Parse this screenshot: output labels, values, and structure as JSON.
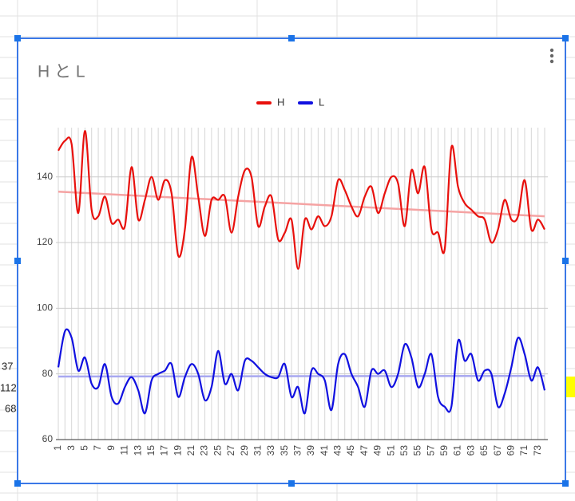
{
  "chart_data": {
    "type": "line",
    "title": "H と L",
    "categories": [
      1,
      null,
      3,
      null,
      5,
      null,
      7,
      null,
      9,
      null,
      11,
      null,
      13,
      null,
      15,
      null,
      17,
      null,
      19,
      null,
      21,
      null,
      23,
      null,
      25,
      null,
      27,
      null,
      29,
      null,
      31,
      null,
      33,
      null,
      35,
      null,
      37,
      null,
      39,
      null,
      41,
      null,
      43,
      null,
      45,
      null,
      47,
      null,
      49,
      null,
      51,
      null,
      53,
      null,
      55,
      null,
      57,
      null,
      59,
      null,
      61,
      null,
      63,
      null,
      65,
      null,
      67,
      null,
      69,
      null,
      71,
      null,
      73,
      null
    ],
    "series": [
      {
        "name": "H",
        "color": "#e8100c",
        "values": [
          148,
          151,
          150,
          129,
          154,
          130,
          128,
          134,
          126,
          127,
          125,
          143,
          127,
          133,
          140,
          133,
          139,
          135,
          116,
          124,
          146,
          134,
          122,
          133,
          133,
          134,
          123,
          134,
          142,
          140,
          125,
          131,
          134,
          121,
          123,
          127,
          112,
          127,
          124,
          128,
          125,
          128,
          139,
          136,
          131,
          128,
          134,
          137,
          129,
          135,
          140,
          138,
          125,
          142,
          135,
          143,
          124,
          123,
          118,
          149,
          137,
          132,
          130,
          128,
          127,
          120,
          124,
          133,
          127,
          128,
          139,
          124,
          127,
          124
        ]
      },
      {
        "name": "L",
        "color": "#1010e0",
        "values": [
          82,
          93,
          91,
          81,
          85,
          77,
          76,
          83,
          73,
          71,
          76,
          79,
          75,
          68,
          78,
          80,
          81,
          83,
          73,
          79,
          83,
          80,
          72,
          76,
          87,
          77,
          80,
          75,
          84,
          84,
          82,
          80,
          79,
          79,
          83,
          73,
          76,
          68,
          81,
          80,
          78,
          69,
          83,
          86,
          80,
          76,
          70,
          81,
          80,
          81,
          76,
          80,
          89,
          85,
          76,
          80,
          86,
          73,
          70,
          70,
          90,
          84,
          86,
          78,
          81,
          80,
          70,
          74,
          82,
          91,
          86,
          78,
          82,
          75
        ]
      }
    ],
    "trendlines": [
      {
        "color": "#f5a3a3",
        "values": [
          135.5,
          128
        ]
      },
      {
        "color": "#a8a8f0",
        "values": [
          79.2,
          79.4
        ]
      }
    ],
    "ylim": [
      60,
      155
    ],
    "yticks": [
      60,
      80,
      100,
      120,
      140
    ],
    "grid": true,
    "legend": "top"
  },
  "background_cells": [
    "37",
    "112",
    "68"
  ]
}
